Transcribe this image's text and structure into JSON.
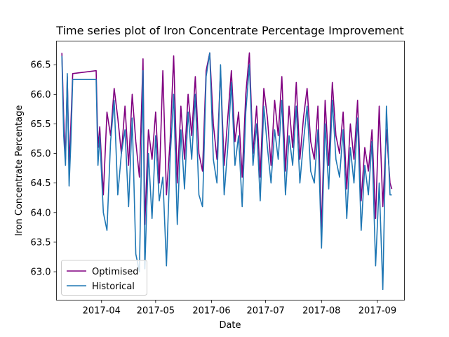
{
  "chart_data": {
    "type": "line",
    "title": "Time series plot of Iron Concentrate Percentage Improvement",
    "xlabel": "Date",
    "ylabel": "Iron Concentrate Percentage",
    "x_axis_type": "date",
    "xlim": [
      "2017-03-07",
      "2017-09-16"
    ],
    "ylim": [
      62.52,
      66.9
    ],
    "x_ticks": [
      "2017-04-01",
      "2017-05-01",
      "2017-06-01",
      "2017-07-01",
      "2017-08-01",
      "2017-09-01"
    ],
    "x_tick_labels": [
      "2017-04",
      "2017-05",
      "2017-06",
      "2017-07",
      "2017-08",
      "2017-09"
    ],
    "y_ticks": [
      63.0,
      63.5,
      64.0,
      64.5,
      65.0,
      65.5,
      66.0,
      66.5
    ],
    "y_tick_labels": [
      "63.0",
      "63.5",
      "64.0",
      "64.5",
      "65.0",
      "65.5",
      "66.0",
      "66.5"
    ],
    "grid": false,
    "legend_position": "lower-left",
    "series": [
      {
        "name": "Optimised",
        "color": "#800080",
        "x": [
          "2017-03-10",
          "2017-03-11",
          "2017-03-12",
          "2017-03-13",
          "2017-03-14",
          "2017-03-15",
          "2017-03-16",
          "2017-03-29",
          "2017-03-30",
          "2017-03-31",
          "2017-04-02",
          "2017-04-04",
          "2017-04-06",
          "2017-04-08",
          "2017-04-10",
          "2017-04-12",
          "2017-04-14",
          "2017-04-16",
          "2017-04-18",
          "2017-04-20",
          "2017-04-22",
          "2017-04-24",
          "2017-04-25",
          "2017-04-27",
          "2017-04-29",
          "2017-05-01",
          "2017-05-03",
          "2017-05-05",
          "2017-05-07",
          "2017-05-09",
          "2017-05-11",
          "2017-05-13",
          "2017-05-15",
          "2017-05-17",
          "2017-05-19",
          "2017-05-21",
          "2017-05-23",
          "2017-05-25",
          "2017-05-27",
          "2017-05-29",
          "2017-05-31",
          "2017-06-02",
          "2017-06-04",
          "2017-06-06",
          "2017-06-08",
          "2017-06-10",
          "2017-06-12",
          "2017-06-14",
          "2017-06-16",
          "2017-06-18",
          "2017-06-20",
          "2017-06-22",
          "2017-06-24",
          "2017-06-26",
          "2017-06-28",
          "2017-06-30",
          "2017-07-02",
          "2017-07-04",
          "2017-07-06",
          "2017-07-08",
          "2017-07-10",
          "2017-07-12",
          "2017-07-14",
          "2017-07-16",
          "2017-07-18",
          "2017-07-20",
          "2017-07-22",
          "2017-07-24",
          "2017-07-26",
          "2017-07-28",
          "2017-07-30",
          "2017-08-01",
          "2017-08-03",
          "2017-08-05",
          "2017-08-07",
          "2017-08-09",
          "2017-08-11",
          "2017-08-13",
          "2017-08-15",
          "2017-08-17",
          "2017-08-19",
          "2017-08-21",
          "2017-08-23",
          "2017-08-25",
          "2017-08-27",
          "2017-08-29",
          "2017-08-31",
          "2017-09-02",
          "2017-09-04",
          "2017-09-06",
          "2017-09-08",
          "2017-09-09"
        ],
        "values": [
          66.7,
          65.6,
          64.9,
          66.3,
          64.8,
          65.5,
          66.35,
          66.4,
          65.1,
          65.45,
          64.3,
          65.7,
          65.3,
          66.1,
          65.6,
          65.0,
          65.8,
          64.8,
          66.0,
          65.2,
          64.6,
          66.6,
          63.8,
          65.4,
          64.9,
          65.7,
          64.5,
          66.4,
          64.3,
          65.2,
          66.65,
          64.5,
          65.8,
          64.9,
          66.0,
          65.3,
          66.3,
          65.0,
          64.7,
          66.4,
          66.7,
          65.5,
          64.9,
          66.4,
          64.8,
          65.6,
          66.4,
          65.2,
          65.7,
          64.6,
          66.0,
          66.7,
          65.0,
          65.8,
          64.6,
          66.1,
          65.6,
          64.8,
          65.9,
          65.3,
          66.3,
          64.7,
          65.8,
          65.1,
          66.2,
          64.9,
          65.6,
          66.1,
          65.2,
          64.9,
          65.8,
          63.7,
          65.9,
          64.8,
          66.2,
          65.3,
          65.0,
          65.7,
          64.4,
          65.5,
          64.9,
          65.9,
          64.2,
          65.1,
          64.7,
          65.4,
          63.9,
          65.8,
          64.1,
          65.4,
          64.5,
          64.4
        ]
      },
      {
        "name": "Historical",
        "color": "#1f77b4",
        "x": [
          "2017-03-10",
          "2017-03-11",
          "2017-03-12",
          "2017-03-13",
          "2017-03-14",
          "2017-03-15",
          "2017-03-16",
          "2017-03-29",
          "2017-03-30",
          "2017-03-31",
          "2017-04-02",
          "2017-04-04",
          "2017-04-06",
          "2017-04-08",
          "2017-04-10",
          "2017-04-12",
          "2017-04-14",
          "2017-04-16",
          "2017-04-18",
          "2017-04-20",
          "2017-04-22",
          "2017-04-24",
          "2017-04-25",
          "2017-04-27",
          "2017-04-29",
          "2017-05-01",
          "2017-05-03",
          "2017-05-05",
          "2017-05-07",
          "2017-05-09",
          "2017-05-11",
          "2017-05-13",
          "2017-05-15",
          "2017-05-17",
          "2017-05-19",
          "2017-05-21",
          "2017-05-23",
          "2017-05-25",
          "2017-05-27",
          "2017-05-29",
          "2017-05-31",
          "2017-06-02",
          "2017-06-04",
          "2017-06-06",
          "2017-06-08",
          "2017-06-10",
          "2017-06-12",
          "2017-06-14",
          "2017-06-16",
          "2017-06-18",
          "2017-06-20",
          "2017-06-22",
          "2017-06-24",
          "2017-06-26",
          "2017-06-28",
          "2017-06-30",
          "2017-07-02",
          "2017-07-04",
          "2017-07-06",
          "2017-07-08",
          "2017-07-10",
          "2017-07-12",
          "2017-07-14",
          "2017-07-16",
          "2017-07-18",
          "2017-07-20",
          "2017-07-22",
          "2017-07-24",
          "2017-07-26",
          "2017-07-28",
          "2017-07-30",
          "2017-08-01",
          "2017-08-03",
          "2017-08-05",
          "2017-08-07",
          "2017-08-09",
          "2017-08-11",
          "2017-08-13",
          "2017-08-15",
          "2017-08-17",
          "2017-08-19",
          "2017-08-21",
          "2017-08-23",
          "2017-08-25",
          "2017-08-27",
          "2017-08-29",
          "2017-08-31",
          "2017-09-02",
          "2017-09-04",
          "2017-09-06",
          "2017-09-08",
          "2017-09-09"
        ],
        "values": [
          66.65,
          65.3,
          64.8,
          66.35,
          64.45,
          65.2,
          66.25,
          66.25,
          64.8,
          65.3,
          64.0,
          63.7,
          65.2,
          65.9,
          64.3,
          65.0,
          65.4,
          64.1,
          65.6,
          63.3,
          63.0,
          66.4,
          63.05,
          65.0,
          63.9,
          65.3,
          64.2,
          64.6,
          63.1,
          64.9,
          66.0,
          63.8,
          65.4,
          64.4,
          65.7,
          64.9,
          66.0,
          64.3,
          64.1,
          66.3,
          66.7,
          64.9,
          64.5,
          66.5,
          64.3,
          65.1,
          66.2,
          64.8,
          65.3,
          64.1,
          65.7,
          66.5,
          64.8,
          65.5,
          64.2,
          65.8,
          65.1,
          64.5,
          65.4,
          64.9,
          65.9,
          64.3,
          65.3,
          64.8,
          65.8,
          64.5,
          65.2,
          65.8,
          64.7,
          64.5,
          65.4,
          63.4,
          65.5,
          64.4,
          65.9,
          64.9,
          64.6,
          65.4,
          63.9,
          65.1,
          64.5,
          65.6,
          63.7,
          64.8,
          64.3,
          65.2,
          63.1,
          64.5,
          62.7,
          65.8,
          64.3,
          64.3
        ]
      }
    ]
  }
}
